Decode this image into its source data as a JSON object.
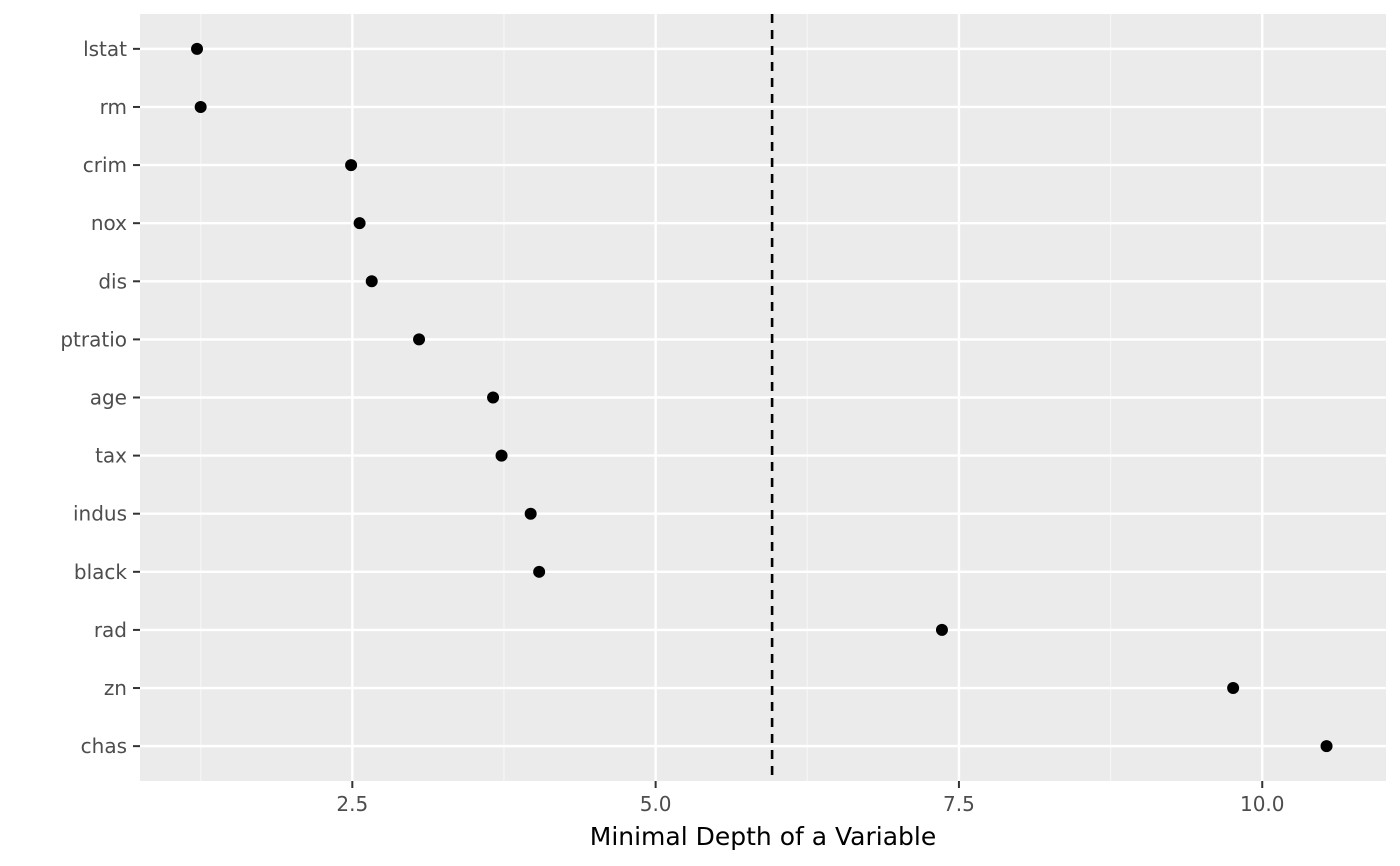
{
  "chart_data": {
    "type": "scatter",
    "title": "",
    "xlabel": "Minimal Depth of a Variable",
    "ylabel": "",
    "xlim": [
      0.75,
      11.02
    ],
    "x_ticks": [
      2.5,
      5.0,
      7.5,
      10.0
    ],
    "x_tick_labels": [
      "2.5",
      "5.0",
      "7.5",
      "10.0"
    ],
    "categories": [
      "lstat",
      "rm",
      "crim",
      "nox",
      "dis",
      "ptratio",
      "age",
      "tax",
      "indus",
      "black",
      "rad",
      "zn",
      "chas"
    ],
    "values": [
      1.22,
      1.25,
      2.49,
      2.56,
      2.66,
      3.05,
      3.66,
      3.73,
      3.97,
      4.04,
      7.36,
      9.76,
      10.53
    ],
    "reference_line": {
      "x": 5.96,
      "style": "dashed"
    },
    "grid": true,
    "legend": "none",
    "colors": {
      "panel_background": "#ebebeb",
      "grid_major": "#ffffff",
      "grid_minor": "#f5f5f5",
      "point": "#000000",
      "reference_line": "#000000",
      "tick_text": "#4d4d4d",
      "tick_mark": "#333333"
    }
  }
}
